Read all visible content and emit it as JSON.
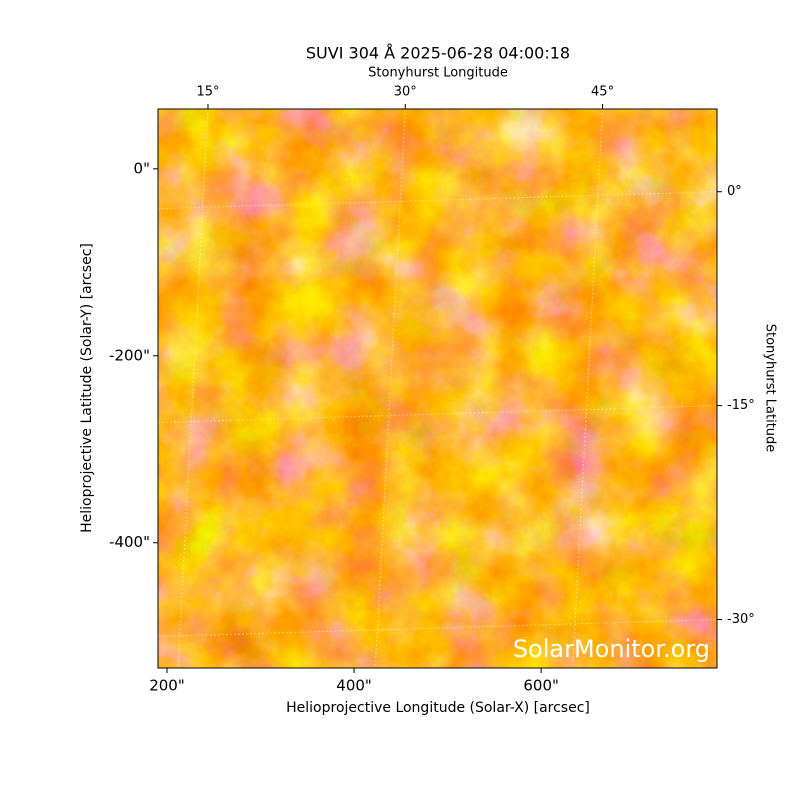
{
  "chart_data": {
    "type": "image",
    "title": "SUVI 304 Å 2025-06-28 04:00:18",
    "x_label": "Helioprojective Longitude (Solar-X) [arcsec]",
    "y_label": "Helioprojective Latitude (Solar-Y) [arcsec]",
    "x2_label": "Stonyhurst Longitude",
    "y2_label": "Stonyhurst Latitude",
    "watermark": "SolarMonitor.org",
    "xlim": [
      190.4,
      788
    ],
    "xticks": [
      {
        "value": 200,
        "label": "200\""
      },
      {
        "value": 400,
        "label": "400\""
      },
      {
        "value": 600,
        "label": "600\""
      }
    ],
    "ylim": [
      -534,
      64
    ],
    "yticks": [
      {
        "value": 0,
        "label": "0\""
      },
      {
        "value": -200,
        "label": "-200\""
      },
      {
        "value": -400,
        "label": "-400\""
      }
    ],
    "x2lim": [
      11.2,
      53.7
    ],
    "x2ticks": [
      {
        "value": 15,
        "label": "15°"
      },
      {
        "value": 30,
        "label": "30°"
      },
      {
        "value": 45,
        "label": "45°"
      }
    ],
    "y2lim": [
      -33.4,
      5.8
    ],
    "y2ticks": [
      {
        "value": 0,
        "label": "0°"
      },
      {
        "value": -15,
        "label": "-15°"
      },
      {
        "value": -30,
        "label": "-30°"
      }
    ],
    "grid": true
  }
}
